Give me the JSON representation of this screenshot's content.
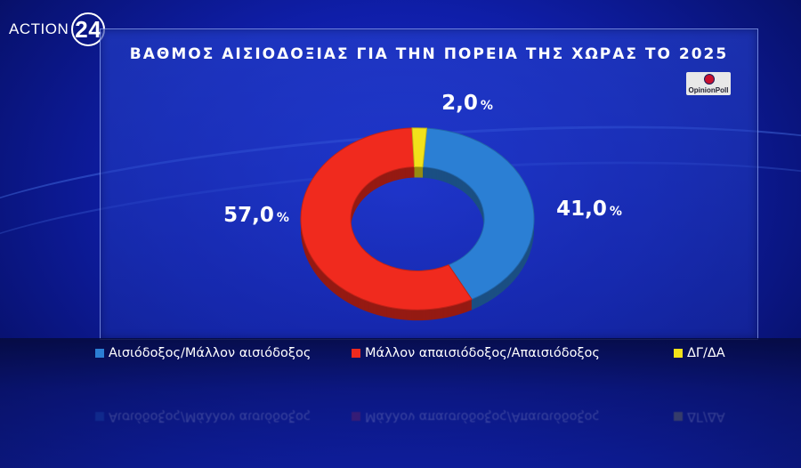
{
  "brand": {
    "name": "ACTION",
    "number": "24"
  },
  "pollster": "OpinionPoll",
  "chart_data": {
    "type": "pie",
    "title": "ΒΑΘΜΟΣ ΑΙΣΙΟΔΟΞΙΑΣ ΓΙΑ ΤΗΝ ΠΟΡΕΙΑ ΤΗΣ ΧΩΡΑΣ ΤΟ 2025",
    "style": "donut",
    "slices": [
      {
        "label": "Αισιόδοξος/Μάλλον αισιόδοξος",
        "value": 41.0,
        "display": "41,0",
        "color": "#2b7fd4"
      },
      {
        "label": "Μάλλον απαισιόδοξος/Απαισιόδοξος",
        "value": 57.0,
        "display": "57,0",
        "color": "#f02a1e"
      },
      {
        "label": "ΔΓ/ΔΑ",
        "value": 2.0,
        "display": "2,0",
        "color": "#f2e21a"
      }
    ],
    "unit": "%",
    "legend_position": "bottom"
  }
}
